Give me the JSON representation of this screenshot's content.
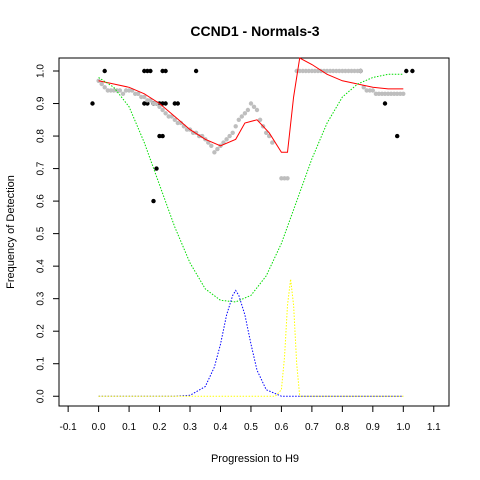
{
  "chart_data": {
    "type": "scatter",
    "title": "CCND1 - Normals-3",
    "xlabel": "Progression to H9",
    "ylabel": "Frequency of Detection",
    "xlim": [
      -0.13,
      1.15
    ],
    "ylim": [
      -0.03,
      1.04
    ],
    "x_ticks": [
      -0.1,
      0.0,
      0.1,
      0.2,
      0.3,
      0.4,
      0.5,
      0.6,
      0.7,
      0.8,
      0.9,
      1.0,
      1.1
    ],
    "x_tick_labels": [
      "-0.1",
      "0.0",
      "0.1",
      "0.2",
      "0.3",
      "0.4",
      "0.5",
      "0.6",
      "0.7",
      "0.8",
      "0.9",
      "1.0",
      "1.1"
    ],
    "y_ticks": [
      0.0,
      0.1,
      0.2,
      0.3,
      0.4,
      0.5,
      0.6,
      0.7,
      0.8,
      0.9,
      1.0
    ],
    "y_tick_labels": [
      "0.0",
      "0.1",
      "0.2",
      "0.3",
      "0.4",
      "0.5",
      "0.6",
      "0.7",
      "0.8",
      "0.9",
      "1.0"
    ],
    "grid": false,
    "colors": {
      "black_points": "#000000",
      "grey_points": "#bebebe",
      "red_curve": "#ff0000",
      "green_curve": "#00dd00",
      "blue_curve": "#0000ff",
      "yellow_curve": "#ffff00"
    },
    "series": [
      {
        "style": "points",
        "color": "#000000",
        "x": [
          -0.02,
          0.02,
          0.15,
          0.16,
          0.17,
          0.18,
          0.21,
          0.22,
          0.32,
          0.15,
          0.16,
          0.18,
          0.19,
          0.2,
          0.21,
          0.22,
          0.25,
          0.26,
          0.2,
          0.21,
          0.19,
          0.18,
          0.86,
          1.01,
          1.03,
          0.94,
          0.98
        ],
        "y": [
          0.9,
          1.0,
          1.0,
          1.0,
          1.0,
          0.9,
          1.0,
          1.0,
          1.0,
          0.9,
          0.9,
          0.9,
          0.9,
          0.9,
          0.9,
          0.9,
          0.9,
          0.9,
          0.8,
          0.8,
          0.7,
          0.6,
          1.0,
          1.0,
          1.0,
          0.9,
          0.8
        ]
      },
      {
        "style": "points",
        "color": "#bebebe",
        "x": [
          0.0,
          0.01,
          0.02,
          0.03,
          0.04,
          0.05,
          0.06,
          0.07,
          0.08,
          0.09,
          0.1,
          0.11,
          0.12,
          0.13,
          0.14,
          0.15,
          0.16,
          0.17,
          0.18,
          0.19,
          0.2,
          0.21,
          0.22,
          0.23,
          0.24,
          0.25,
          0.26,
          0.27,
          0.28,
          0.29,
          0.3,
          0.31,
          0.32,
          0.33,
          0.34,
          0.35,
          0.36,
          0.37,
          0.38,
          0.39,
          0.4,
          0.41,
          0.42,
          0.43,
          0.44,
          0.45,
          0.46,
          0.47,
          0.48,
          0.49,
          0.5,
          0.51,
          0.52,
          0.53,
          0.54,
          0.55,
          0.56,
          0.57,
          0.6,
          0.61,
          0.62,
          0.65,
          0.66,
          0.67,
          0.68,
          0.69,
          0.7,
          0.71,
          0.72,
          0.73,
          0.74,
          0.75,
          0.76,
          0.77,
          0.78,
          0.79,
          0.8,
          0.81,
          0.82,
          0.83,
          0.84,
          0.85,
          0.86,
          0.87,
          0.88,
          0.89,
          0.9,
          0.91,
          0.92,
          0.93,
          0.94,
          0.95,
          0.96,
          0.97,
          0.98,
          0.99,
          1.0
        ],
        "y": [
          0.97,
          0.96,
          0.95,
          0.94,
          0.94,
          0.94,
          0.94,
          0.94,
          0.93,
          0.94,
          0.94,
          0.94,
          0.93,
          0.93,
          0.92,
          0.92,
          0.91,
          0.91,
          0.9,
          0.9,
          0.89,
          0.88,
          0.87,
          0.86,
          0.86,
          0.85,
          0.84,
          0.84,
          0.83,
          0.82,
          0.82,
          0.81,
          0.81,
          0.8,
          0.8,
          0.79,
          0.78,
          0.77,
          0.75,
          0.76,
          0.77,
          0.78,
          0.79,
          0.8,
          0.81,
          0.83,
          0.85,
          0.86,
          0.87,
          0.88,
          0.9,
          0.89,
          0.88,
          0.85,
          0.83,
          0.81,
          0.8,
          0.78,
          0.67,
          0.67,
          0.67,
          1.0,
          1.0,
          1.0,
          1.0,
          1.0,
          1.0,
          1.0,
          1.0,
          1.0,
          1.0,
          1.0,
          1.0,
          1.0,
          1.0,
          1.0,
          1.0,
          1.0,
          1.0,
          1.0,
          1.0,
          1.0,
          1.0,
          0.95,
          0.94,
          0.94,
          0.94,
          0.93,
          0.93,
          0.93,
          0.93,
          0.93,
          0.93,
          0.93,
          0.93,
          0.93,
          0.93
        ]
      },
      {
        "style": "line",
        "color": "#ff0000",
        "x": [
          0.0,
          0.05,
          0.1,
          0.15,
          0.2,
          0.25,
          0.3,
          0.35,
          0.4,
          0.45,
          0.48,
          0.52,
          0.56,
          0.6,
          0.62,
          0.64,
          0.66,
          0.7,
          0.75,
          0.8,
          0.85,
          0.9,
          0.95,
          1.0
        ],
        "y": [
          0.97,
          0.96,
          0.95,
          0.93,
          0.9,
          0.86,
          0.82,
          0.79,
          0.77,
          0.79,
          0.84,
          0.85,
          0.81,
          0.75,
          0.75,
          0.92,
          1.04,
          1.02,
          0.99,
          0.97,
          0.96,
          0.95,
          0.945,
          0.945
        ]
      },
      {
        "style": "dotted",
        "color": "#00dd00",
        "x": [
          0.0,
          0.05,
          0.1,
          0.15,
          0.2,
          0.25,
          0.3,
          0.35,
          0.4,
          0.45,
          0.5,
          0.55,
          0.6,
          0.65,
          0.7,
          0.75,
          0.8,
          0.85,
          0.9,
          0.95,
          1.0
        ],
        "y": [
          0.98,
          0.95,
          0.89,
          0.78,
          0.65,
          0.52,
          0.41,
          0.33,
          0.295,
          0.29,
          0.31,
          0.37,
          0.47,
          0.6,
          0.73,
          0.84,
          0.92,
          0.96,
          0.98,
          0.99,
          0.99
        ]
      },
      {
        "style": "dotted",
        "color": "#0000ff",
        "x": [
          0.0,
          0.25,
          0.3,
          0.35,
          0.38,
          0.4,
          0.42,
          0.44,
          0.45,
          0.46,
          0.48,
          0.5,
          0.52,
          0.55,
          0.6,
          1.0
        ],
        "y": [
          0.0,
          0.0,
          0.003,
          0.03,
          0.09,
          0.16,
          0.25,
          0.31,
          0.325,
          0.31,
          0.25,
          0.16,
          0.08,
          0.02,
          0.0,
          0.0
        ]
      },
      {
        "style": "dotted",
        "color": "#ffff00",
        "x": [
          0.0,
          0.58,
          0.6,
          0.61,
          0.62,
          0.63,
          0.64,
          0.65,
          0.66,
          1.0
        ],
        "y": [
          0.0,
          0.0,
          0.02,
          0.12,
          0.28,
          0.36,
          0.28,
          0.1,
          0.0,
          0.0
        ]
      }
    ]
  }
}
